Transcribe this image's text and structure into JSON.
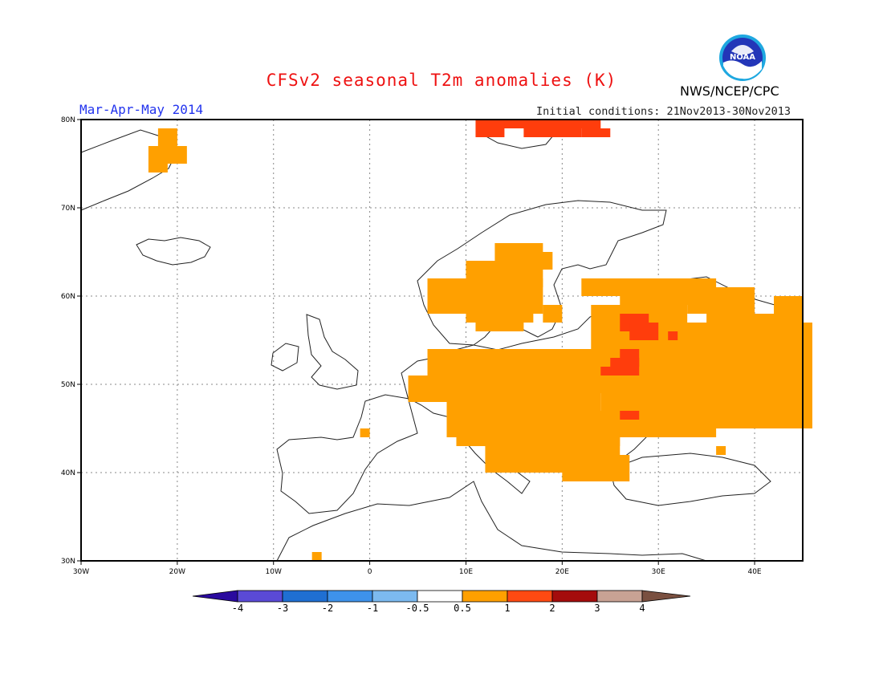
{
  "title": "CFSv2 seasonal T2m anomalies (K)",
  "period": "Mar-Apr-May 2014",
  "initial_conditions": "Initial conditions: 21Nov2013-30Nov2013",
  "agency": "NWS/NCEP/CPC",
  "logo_text": "NOAA",
  "map": {
    "lon_range": [
      -30,
      45
    ],
    "lat_range": [
      30,
      80
    ],
    "lon_ticks": [
      "30W",
      "20W",
      "10W",
      "0",
      "10E",
      "20E",
      "30E",
      "40E"
    ],
    "lat_ticks": [
      "80N",
      "70N",
      "60N",
      "50N",
      "40N",
      "30N"
    ],
    "grid": "dotted"
  },
  "colorbar": {
    "labels": [
      "-4",
      "-3",
      "-2",
      "-1",
      "-0.5",
      "0.5",
      "1",
      "2",
      "3",
      "4"
    ],
    "colors": [
      "#2a0a9e",
      "#5a4ad6",
      "#1f6fd2",
      "#3e92ea",
      "#7cbaf0",
      "#ffffff",
      "#ffa000",
      "#ff4a12",
      "#a40c0c",
      "#c8a294",
      "#7a5040"
    ]
  },
  "anomaly_legend": {
    "warm": "#ffa000",
    "hot": "#ff3d0c"
  }
}
